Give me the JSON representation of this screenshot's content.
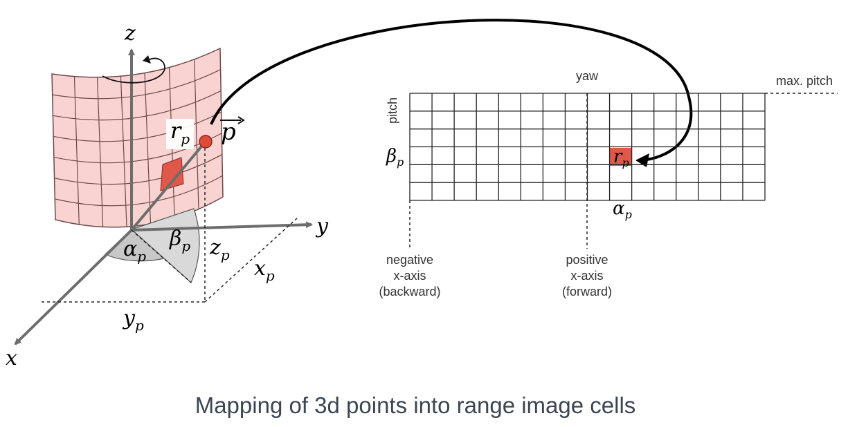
{
  "colors": {
    "surface_fill": "#f9d3d1",
    "surface_grid": "#6b4a4a",
    "cell_fill": "#e0584a",
    "axis_gray": "#6d6d6d",
    "arc_fill": "#cccccc",
    "caption": "#3b4652"
  },
  "left": {
    "axis_z": "z",
    "axis_y": "y",
    "axis_x": "x",
    "r_label": "r",
    "p_label": "p",
    "alpha": "α",
    "beta": "β",
    "z_comp": "z",
    "x_comp": "x",
    "y_comp": "y",
    "subscript": "p"
  },
  "right": {
    "yaw": "yaw",
    "max_pitch": "max. pitch",
    "pitch": "pitch",
    "beta": "β",
    "alpha": "α",
    "r_label": "r",
    "subscript": "p",
    "neg_line1": "negative",
    "neg_line2": "x-axis",
    "neg_line3": "(backward)",
    "pos_line1": "positive",
    "pos_line2": "x-axis",
    "pos_line3": "(forward)"
  },
  "caption": "Mapping of 3d points into range image cells"
}
